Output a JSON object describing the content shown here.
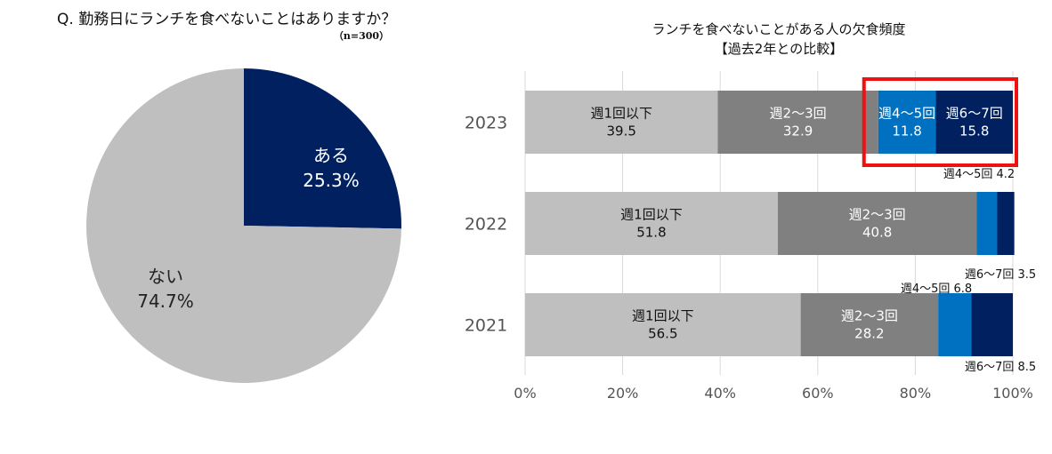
{
  "question": "Q. 勤務日にランチを食べないことはありますか？",
  "sample_note": "（n=300）",
  "colors": {
    "navy": "#002060",
    "gray_light": "#bfbfbf",
    "gray_dark": "#808080",
    "blue": "#0070c0",
    "highlight": "#ee1111"
  },
  "chart_data": [
    {
      "type": "pie",
      "title": "",
      "slices": [
        {
          "label": "ある",
          "value": 25.3,
          "value_label": "25.3%",
          "color": "#002060"
        },
        {
          "label": "ない",
          "value": 74.7,
          "value_label": "74.7%",
          "color": "#bfbfbf"
        }
      ]
    },
    {
      "type": "bar",
      "orientation": "horizontal",
      "stacked": true,
      "title": [
        "ランチを食べないことがある人の欠食頻度",
        "【過去2年との比較】"
      ],
      "categories": [
        "2023",
        "2022",
        "2021"
      ],
      "xlim": [
        0,
        100
      ],
      "x_ticks": [
        "0%",
        "20%",
        "40%",
        "60%",
        "80%",
        "100%"
      ],
      "grid": true,
      "series": [
        {
          "name": "週1回以下",
          "color": "#bfbfbf",
          "values": [
            39.5,
            51.8,
            56.5
          ],
          "value_labels": [
            "39.5",
            "51.8",
            "56.5"
          ]
        },
        {
          "name": "週2～3回",
          "color": "#808080",
          "values": [
            32.9,
            40.8,
            28.2
          ],
          "value_labels": [
            "32.9",
            "40.8",
            "28.2"
          ]
        },
        {
          "name": "週4～5回",
          "color": "#0070c0",
          "values": [
            11.8,
            4.2,
            6.8
          ],
          "value_labels": [
            "11.8",
            "4.2",
            "6.8"
          ]
        },
        {
          "name": "週6～7回",
          "color": "#002060",
          "values": [
            15.8,
            3.5,
            8.5
          ],
          "value_labels": [
            "15.8",
            "3.5",
            "8.5"
          ]
        }
      ],
      "highlight": {
        "category": "2023",
        "series": [
          "週4～5回",
          "週6～7回"
        ]
      }
    }
  ]
}
